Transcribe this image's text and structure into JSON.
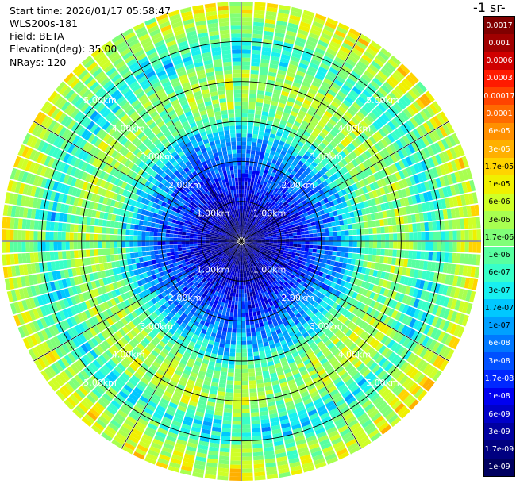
{
  "header": {
    "start_time": "Start time: 2026/01/17 05:58:47",
    "instrument": "WLS200s-181",
    "field": "Field: BETA",
    "elevation": "Elevation(deg): 35.00",
    "nrays": "NRays: 120"
  },
  "chart_data": {
    "type": "heatmap",
    "projection": "polar (PPI scan)",
    "field": "BETA",
    "elevation_deg": 35.0,
    "n_rays": 120,
    "range_rings": [
      {
        "range_km": 1.0,
        "label": "1.00km"
      },
      {
        "range_km": 2.0,
        "label": "2.00km"
      },
      {
        "range_km": 3.0,
        "label": "3.00km"
      },
      {
        "range_km": 4.0,
        "label": "4.00km"
      },
      {
        "range_km": 5.0,
        "label": "5.00km"
      }
    ],
    "max_range_km": 6.0,
    "spokes_deg": [
      0,
      30,
      60,
      90,
      120,
      150,
      180,
      210,
      240,
      270,
      300,
      330
    ],
    "radial_profile": [
      {
        "range_km": 0.0,
        "value": "1e-09"
      },
      {
        "range_km": 1.0,
        "value": "6e-09"
      },
      {
        "range_km": 1.6,
        "value": "1.7e-08"
      },
      {
        "range_km": 2.5,
        "value": "1e-07"
      },
      {
        "range_km": 3.3,
        "value": "1.7e-06"
      },
      {
        "range_km": 4.2,
        "value": "3e-06"
      },
      {
        "range_km": 4.7,
        "value": "3e-07"
      },
      {
        "range_km": 5.3,
        "value": "1.7e-06"
      },
      {
        "range_km": 5.8,
        "value": "6e-06"
      }
    ],
    "colorbar": {
      "title": "-1 sr-",
      "labels": [
        "0.0017",
        "0.001",
        "0.0006",
        "0.0003",
        "0.00017",
        "0.0001",
        "6e-05",
        "3e-05",
        "1.7e-05",
        "1e-05",
        "6e-06",
        "3e-06",
        "1.7e-06",
        "1e-06",
        "6e-07",
        "3e-07",
        "1.7e-07",
        "1e-07",
        "6e-08",
        "3e-08",
        "1.7e-08",
        "1e-08",
        "6e-09",
        "3e-09",
        "1.7e-09",
        "1e-09"
      ],
      "colors": [
        "#800000",
        "#a00000",
        "#d00000",
        "#ff1a00",
        "#ff4400",
        "#ff6a00",
        "#ff9000",
        "#ffb000",
        "#ffd400",
        "#f0f000",
        "#cfff28",
        "#a8ff50",
        "#80ff78",
        "#58ffa0",
        "#38ffc8",
        "#18f0f0",
        "#00c8ff",
        "#00a0ff",
        "#0078ff",
        "#0050ff",
        "#0028ff",
        "#0000f0",
        "#0000c8",
        "#0000a0",
        "#000080",
        "#000060"
      ]
    }
  }
}
